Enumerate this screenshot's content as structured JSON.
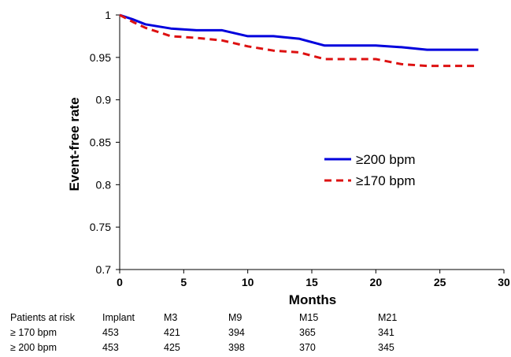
{
  "chart_data": {
    "type": "line",
    "xlabel": "Months",
    "ylabel": "Event-free rate",
    "xlim": [
      0,
      30
    ],
    "ylim": [
      0.7,
      1
    ],
    "x_ticks": [
      "0",
      "5",
      "10",
      "15",
      "20",
      "25",
      "30"
    ],
    "y_ticks": [
      "0.7",
      "0.75",
      "0.8",
      "0.85",
      "0.9",
      "0.95",
      "1"
    ],
    "grid": false,
    "legend_position": "center-right",
    "series": [
      {
        "name": "≥200  bpm",
        "color": "#0000dd",
        "style": "solid",
        "x": [
          0,
          1,
          2,
          4,
          6,
          8,
          10,
          12,
          14,
          16,
          18,
          20,
          22,
          24,
          26,
          28
        ],
        "y": [
          1.0,
          0.995,
          0.989,
          0.984,
          0.982,
          0.982,
          0.975,
          0.975,
          0.972,
          0.964,
          0.964,
          0.964,
          0.962,
          0.959,
          0.959,
          0.959
        ]
      },
      {
        "name": "≥170 bpm",
        "color": "#dd1111",
        "style": "dashed",
        "x": [
          0,
          1,
          2,
          4,
          6,
          8,
          10,
          12,
          14,
          16,
          18,
          20,
          22,
          24,
          26,
          28
        ],
        "y": [
          1.0,
          0.992,
          0.985,
          0.975,
          0.973,
          0.97,
          0.963,
          0.958,
          0.956,
          0.948,
          0.948,
          0.948,
          0.942,
          0.94,
          0.94,
          0.94
        ]
      }
    ]
  },
  "risk_table": {
    "header": [
      "Patients at risk",
      "Implant",
      "M3",
      "M9",
      "M15",
      "M21"
    ],
    "rows": [
      [
        "≥ 170 bpm",
        "453",
        "421",
        "394",
        "365",
        "341"
      ],
      [
        "≥ 200 bpm",
        "453",
        "425",
        "398",
        "370",
        "345"
      ]
    ]
  }
}
